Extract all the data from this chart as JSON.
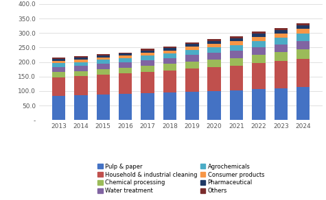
{
  "years": [
    2013,
    2014,
    2015,
    2016,
    2017,
    2018,
    2019,
    2020,
    2021,
    2022,
    2023,
    2024
  ],
  "segments": {
    "Pulp & paper": [
      82,
      85,
      88,
      90,
      93,
      95,
      97,
      100,
      103,
      106,
      110,
      115
    ],
    "Household & industrial cleaning": [
      65,
      66,
      68,
      70,
      73,
      76,
      80,
      82,
      84,
      90,
      93,
      96
    ],
    "Chemical processing": [
      18,
      18,
      19,
      20,
      21,
      22,
      24,
      26,
      27,
      29,
      31,
      33
    ],
    "Water treatment": [
      18,
      18,
      19,
      19,
      20,
      21,
      23,
      24,
      25,
      26,
      27,
      29
    ],
    "Agrochemicals": [
      13,
      13,
      14,
      14,
      15,
      16,
      18,
      19,
      20,
      21,
      22,
      24
    ],
    "Consumer products": [
      8,
      8,
      8,
      9,
      10,
      10,
      11,
      12,
      13,
      15,
      16,
      17
    ],
    "Pharmaceutical": [
      7,
      7,
      7,
      7,
      8,
      8,
      9,
      9,
      10,
      10,
      11,
      12
    ],
    "Others": [
      4,
      4,
      4,
      4,
      5,
      5,
      6,
      6,
      7,
      7,
      8,
      8
    ]
  },
  "colors": {
    "Pulp & paper": "#4472c4",
    "Household & industrial cleaning": "#c0504d",
    "Chemical processing": "#9bbb59",
    "Water treatment": "#8064a2",
    "Agrochemicals": "#4bacc6",
    "Consumer products": "#f79646",
    "Pharmaceutical": "#1f3864",
    "Others": "#7b2c2c"
  },
  "ylim": [
    0,
    400
  ],
  "yticks": [
    0,
    50,
    100,
    150,
    200,
    250,
    300,
    350,
    400
  ],
  "ytick_labels": [
    "-",
    "50.0",
    "100.0",
    "150.0",
    "200.0",
    "250.0",
    "300.0",
    "350.0",
    "400.0"
  ],
  "legend_order": [
    "Pulp & paper",
    "Household & industrial cleaning",
    "Chemical processing",
    "Water treatment",
    "Agrochemicals",
    "Consumer products",
    "Pharmaceutical",
    "Others"
  ],
  "background_color": "#ffffff",
  "grid_color": "#e0e0e0"
}
